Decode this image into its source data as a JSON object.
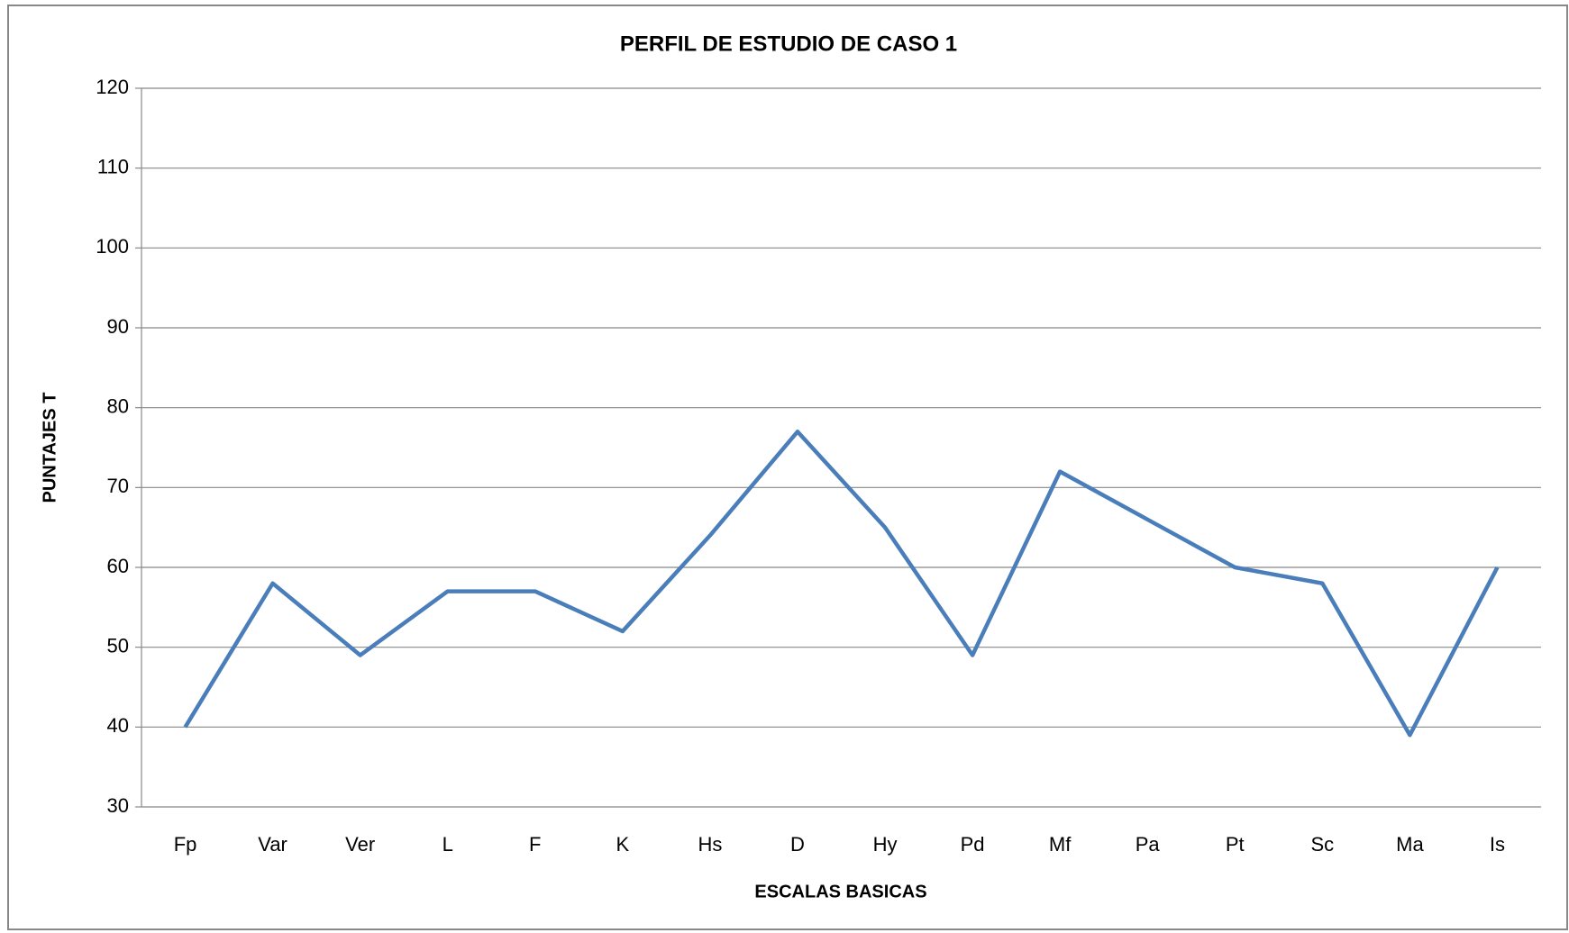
{
  "chart_data": {
    "type": "line",
    "title": "PERFIL DE ESTUDIO DE CASO 1",
    "x_label": "ESCALAS BASICAS",
    "y_label": "PUNTAJES T",
    "categories": [
      "Fp",
      "Var",
      "Ver",
      "L",
      "F",
      "K",
      "Hs",
      "D",
      "Hy",
      "Pd",
      "Mf",
      "Pa",
      "Pt",
      "Sc",
      "Ma",
      "Is"
    ],
    "series": [
      {
        "name": "PUNTAJES T",
        "color": "#4a7ebb",
        "values": [
          40,
          58,
          49,
          57,
          57,
          52,
          64,
          77,
          65,
          49,
          72,
          66,
          60,
          58,
          39,
          60
        ]
      }
    ],
    "ylim": [
      30,
      120
    ],
    "yticks": [
      30,
      40,
      50,
      60,
      70,
      80,
      90,
      100,
      110,
      120
    ],
    "grid": true,
    "legend": false
  }
}
